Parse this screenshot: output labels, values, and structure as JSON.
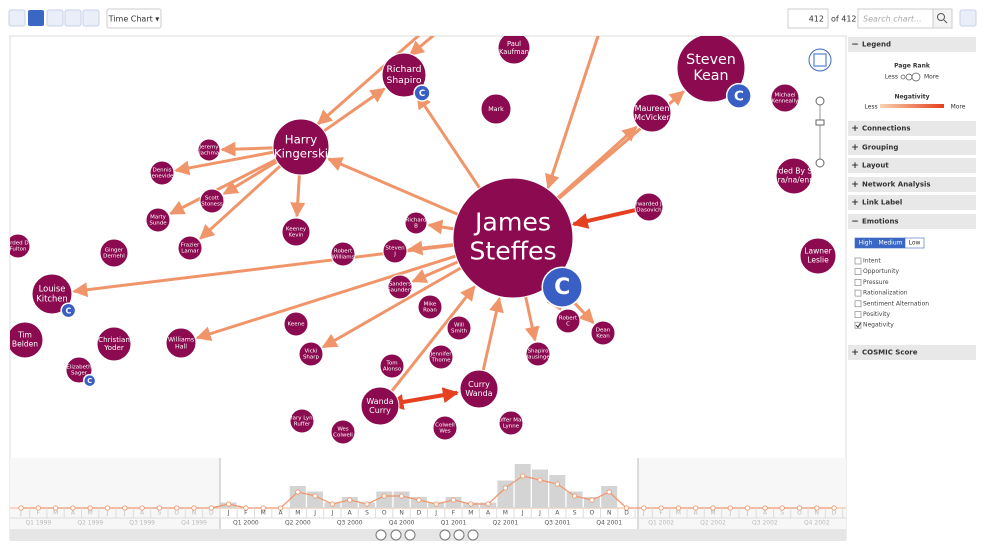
{
  "toolbar": {
    "view_button": "Time Chart ▾",
    "page": "412",
    "page_total": "of 412",
    "search_placeholder": "Search chart..."
  },
  "graph": {
    "nodes": [
      {
        "label": [
          "Richard",
          "Shapiro"
        ],
        "badge": "C"
      },
      {
        "label": [
          "Paul",
          "Kaufman"
        ]
      },
      {
        "label": [
          "Mark"
        ]
      },
      {
        "label": [
          "Steven",
          "Kean"
        ],
        "badge": "C"
      },
      {
        "label": [
          "Maureen",
          "McVicker"
        ]
      },
      {
        "label": [
          "Michael",
          "Kenneally"
        ]
      },
      {
        "label": [
          "Harry",
          "Kingerski"
        ]
      },
      {
        "label": [
          "Jeremy",
          "Blachman"
        ]
      },
      {
        "label": [
          "Dennis",
          "Benevides"
        ]
      },
      {
        "label": [
          "Scott",
          "Stoness"
        ]
      },
      {
        "label": [
          "Marty",
          "Sunde"
        ]
      },
      {
        "label": [
          "Frazier",
          "Lamar"
        ]
      },
      {
        "label": [
          "Keeney",
          "Kevin"
        ]
      },
      {
        "label": [
          "Richard",
          "B"
        ]
      },
      {
        "label": [
          "James",
          "Steffes"
        ],
        "badge": "C"
      },
      {
        "label": [
          "Forwarded Jeff",
          "Dasovich"
        ]
      },
      {
        "label": [
          "Forwarded By Susan J",
          "Mara/na/enron"
        ]
      },
      {
        "label": [
          "Lawner",
          "Leslie"
        ]
      },
      {
        "label": [
          "Forwarded Donna",
          "Fulton"
        ]
      },
      {
        "label": [
          "Ginger",
          "Dernehl"
        ]
      },
      {
        "label": [
          "Robert",
          "Williams"
        ]
      },
      {
        "label": [
          "Steven",
          "J"
        ]
      },
      {
        "label": [
          "Louise",
          "Kitchen"
        ],
        "badge": "C"
      },
      {
        "label": [
          "Sanders",
          "Saunders"
        ]
      },
      {
        "label": [
          "Mike",
          "Roan"
        ]
      },
      {
        "label": [
          "Keene"
        ]
      },
      {
        "label": [
          "Will",
          "Smith"
        ]
      },
      {
        "label": [
          "Robert",
          "C"
        ]
      },
      {
        "label": [
          "Dean",
          "Kean"
        ]
      },
      {
        "label": [
          "Tim",
          "Belden"
        ]
      },
      {
        "label": [
          "Christian",
          "Yoder"
        ]
      },
      {
        "label": [
          "Williams",
          "Hall"
        ]
      },
      {
        "label": [
          "Vicki",
          "Sharp"
        ]
      },
      {
        "label": [
          "Tom",
          "Alonso"
        ]
      },
      {
        "label": [
          "Jennifer",
          "Thome"
        ]
      },
      {
        "label": [
          "Shapiro",
          "Hausinger"
        ]
      },
      {
        "label": [
          "Elizabeth",
          "Sager"
        ],
        "badge": "C"
      },
      {
        "label": [
          "Curry",
          "Wanda"
        ]
      },
      {
        "label": [
          "Wanda",
          "Curry"
        ]
      },
      {
        "label": [
          "Mary Lynn",
          "Ruffer"
        ]
      },
      {
        "label": [
          "Wes",
          "Colwell"
        ]
      },
      {
        "label": [
          "Colwell",
          "Wes"
        ]
      },
      {
        "label": [
          "Ruffer Mary",
          "Lynne"
        ]
      }
    ]
  },
  "sidebar": {
    "legend": {
      "title": "Legend",
      "page_rank": "Page Rank",
      "rank_less": "Less",
      "rank_more": "More",
      "negativity": "Negativity",
      "neg_less": "Less",
      "neg_more": "More"
    },
    "sections": [
      "Connections",
      "Grouping",
      "Layout",
      "Network Analysis",
      "Link Label"
    ],
    "emotions": {
      "title": "Emotions",
      "levels": [
        {
          "label": "High",
          "selected": true
        },
        {
          "label": "Medium",
          "selected": true
        },
        {
          "label": "Low",
          "selected": false
        }
      ],
      "options": [
        {
          "label": "Intent",
          "checked": false
        },
        {
          "label": "Opportunity",
          "checked": false
        },
        {
          "label": "Pressure",
          "checked": false
        },
        {
          "label": "Rationalization",
          "checked": false
        },
        {
          "label": "Sentiment Alternation",
          "checked": false
        },
        {
          "label": "Positivity",
          "checked": false
        },
        {
          "label": "Negativity",
          "checked": true
        }
      ]
    },
    "cosmic": "COSMIC Score"
  },
  "timeline": {
    "months": [
      "J",
      "F",
      "M",
      "A",
      "M",
      "J",
      "J",
      "A",
      "S",
      "O",
      "N",
      "D",
      "J",
      "F",
      "M",
      "A",
      "M",
      "J",
      "J",
      "A",
      "S",
      "O",
      "N",
      "D",
      "J",
      "F",
      "M",
      "A",
      "M",
      "J",
      "J",
      "A",
      "S",
      "O",
      "N",
      "D",
      "J",
      "F",
      "M",
      "A",
      "M",
      "J",
      "J",
      "A",
      "S",
      "O",
      "N",
      "D"
    ],
    "quarters": [
      "Q1 1999",
      "Q2 1999",
      "Q3 1999",
      "Q4 1999",
      "Q1 2000",
      "Q2 2000",
      "Q3 2000",
      "Q4 2000",
      "Q1 2001",
      "Q2 2001",
      "Q3 2001",
      "Q4 2001",
      "Q1 2002",
      "Q2 2002",
      "Q3 2002",
      "Q4 2002"
    ],
    "counts": [
      0,
      0,
      0,
      0,
      0,
      0,
      0,
      0,
      0,
      0,
      0,
      0,
      1,
      0,
      0,
      0,
      4,
      3,
      1,
      2,
      1,
      3,
      3,
      2,
      1,
      2,
      1,
      1,
      5,
      8,
      7,
      6,
      3,
      2,
      4,
      0,
      0,
      0,
      0,
      0,
      0,
      0,
      0,
      0,
      0,
      0,
      0,
      0
    ]
  }
}
